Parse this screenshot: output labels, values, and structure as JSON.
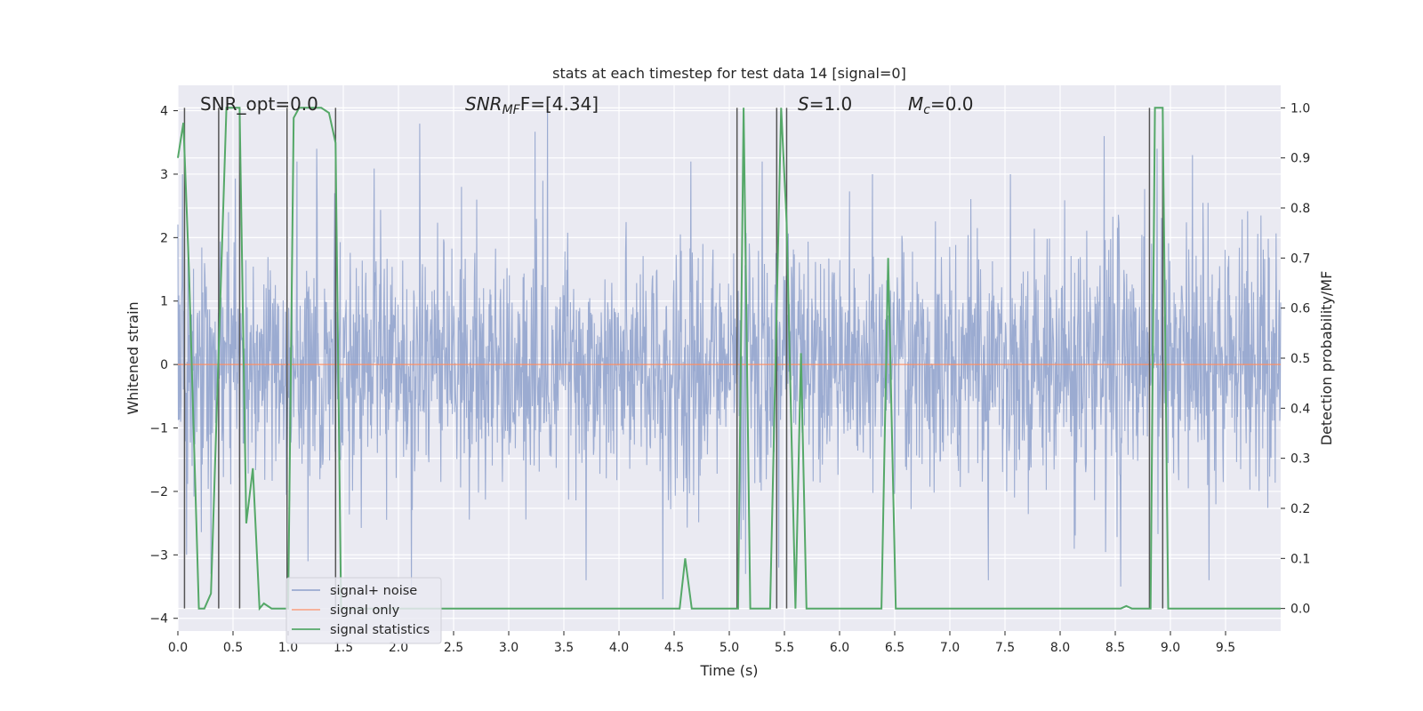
{
  "chart_data": {
    "type": "line",
    "title": "stats at each timestep for test data 14 [signal=0]",
    "xlabel": "Time (s)",
    "ylabel": "Whitened strain",
    "ylabel_right": "Detection probability/MF",
    "xlim": [
      0,
      10
    ],
    "ylim": [
      -4.2,
      4.4
    ],
    "ylim_right": [
      -0.045,
      1.045
    ],
    "x_ticks": [
      0.0,
      0.5,
      1.0,
      1.5,
      2.0,
      2.5,
      3.0,
      3.5,
      4.0,
      4.5,
      5.0,
      5.5,
      6.0,
      6.5,
      7.0,
      7.5,
      8.0,
      8.5,
      9.0,
      9.5
    ],
    "x_tick_labels": [
      "0.0",
      "0.5",
      "1.0",
      "1.5",
      "2.0",
      "2.5",
      "3.0",
      "3.5",
      "4.0",
      "4.5",
      "5.0",
      "5.5",
      "6.0",
      "6.5",
      "7.0",
      "7.5",
      "8.0",
      "8.5",
      "9.0",
      "9.5"
    ],
    "y_ticks": [
      -4,
      -3,
      -2,
      -1,
      0,
      1,
      2,
      3,
      4
    ],
    "y_tick_labels": [
      "−4",
      "−3",
      "−2",
      "−1",
      "0",
      "1",
      "2",
      "3",
      "4"
    ],
    "y_ticks_right": [
      0.0,
      0.1,
      0.2,
      0.3,
      0.4,
      0.5,
      0.6,
      0.7,
      0.8,
      0.9,
      1.0
    ],
    "y_tick_labels_right": [
      "0.0",
      "0.1",
      "0.2",
      "0.3",
      "0.4",
      "0.5",
      "0.6",
      "0.7",
      "0.8",
      "0.9",
      "1.0"
    ],
    "grid": true,
    "legend_position": "lower-left",
    "annotations": {
      "snr_opt": "SNR_opt=0.0",
      "snr_mf_base": "SNR",
      "snr_mf_sub": "MF",
      "snr_mf_value": "F=[4.34]",
      "s_symbol": "S",
      "s_value": "=1.0",
      "mc_symbol": "M",
      "mc_sub": "c",
      "mc_value": "=0.0"
    },
    "series": [
      {
        "name": "signal+ noise",
        "axis": "left",
        "color": "#8da0cb",
        "description_kind": "dense noise trace",
        "noise_std": 0.95,
        "peaks": [
          [
            0.04,
            3.0
          ],
          [
            0.46,
            2.4
          ],
          [
            1.08,
            3.2
          ],
          [
            1.26,
            3.4
          ],
          [
            2.57,
            2.8
          ],
          [
            3.35,
            4.1
          ],
          [
            4.65,
            3.2
          ],
          [
            5.3,
            3.2
          ],
          [
            6.3,
            3.0
          ],
          [
            7.55,
            3.0
          ],
          [
            8.4,
            3.6
          ],
          [
            8.88,
            3.4
          ],
          [
            9.2,
            3.3
          ]
        ],
        "troughs": [
          [
            0.08,
            -3.0
          ],
          [
            0.3,
            -3.3
          ],
          [
            1.18,
            -3.1
          ],
          [
            3.7,
            -3.4
          ],
          [
            5.15,
            -3.3
          ],
          [
            5.45,
            -3.2
          ],
          [
            7.35,
            -3.4
          ],
          [
            8.55,
            -3.5
          ],
          [
            9.35,
            -3.4
          ]
        ]
      },
      {
        "name": "signal only",
        "axis": "left",
        "color": "#fc8d62",
        "x": [
          0,
          10
        ],
        "values": [
          0,
          0
        ]
      },
      {
        "name": "signal statistics",
        "axis": "right",
        "color": "#55a868",
        "x": [
          0.0,
          0.05,
          0.1,
          0.19,
          0.24,
          0.3,
          0.44,
          0.48,
          0.56,
          0.62,
          0.68,
          0.74,
          0.78,
          0.85,
          0.95,
          1.0,
          1.05,
          1.1,
          1.15,
          1.2,
          1.3,
          1.37,
          1.43,
          1.48,
          1.55,
          4.55,
          4.6,
          4.66,
          4.71,
          5.08,
          5.13,
          5.19,
          5.37,
          5.47,
          5.52,
          5.6,
          5.65,
          5.7,
          5.8,
          6.38,
          6.44,
          6.51,
          6.55,
          6.6,
          8.55,
          8.6,
          8.65,
          8.82,
          8.86,
          8.93,
          8.98,
          9.1,
          9.2,
          10.0
        ],
        "values": [
          0.9,
          0.97,
          0.68,
          0.0,
          0.0,
          0.03,
          1.0,
          1.0,
          1.0,
          0.17,
          0.28,
          0.0,
          0.01,
          0.0,
          0.0,
          0.0,
          0.98,
          1.0,
          1.0,
          1.0,
          1.0,
          0.99,
          0.93,
          0.0,
          0.0,
          0.0,
          0.1,
          0.0,
          0.0,
          0.0,
          1.0,
          0.0,
          0.0,
          1.0,
          0.77,
          0.0,
          0.51,
          0.0,
          0.0,
          0.0,
          0.7,
          0.0,
          0.0,
          0.0,
          0.0,
          0.005,
          0.0,
          0.0,
          1.0,
          1.0,
          0.0,
          0.0,
          0.0,
          0.0
        ]
      }
    ],
    "vertical_lines_x": [
      0.06,
      0.37,
      0.56,
      0.99,
      1.43,
      5.07,
      5.43,
      5.52,
      8.81,
      8.93
    ]
  }
}
